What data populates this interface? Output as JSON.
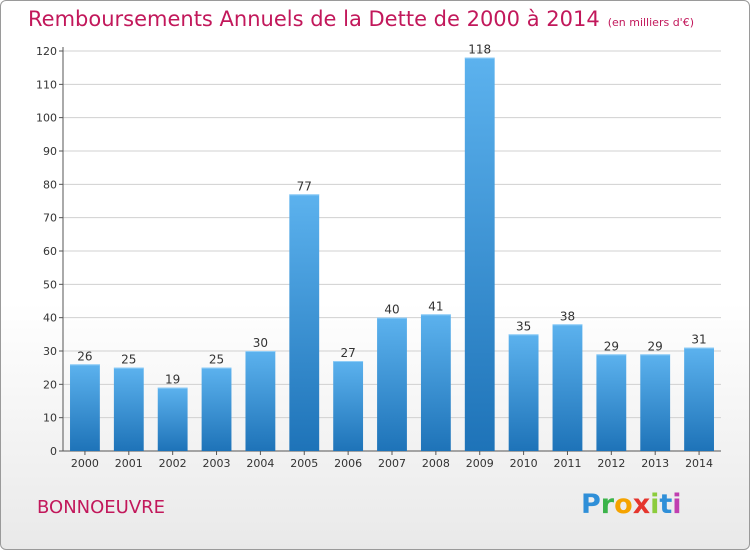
{
  "header": {
    "title": "Remboursements Annuels de la Dette de 2000 à 2014",
    "unit": "(en milliers d'€)"
  },
  "footer": {
    "commune": "BONNOEUVRE",
    "brand_letters": [
      "P",
      "r",
      "o",
      "x",
      "i",
      "t",
      "i"
    ],
    "brand_colors": [
      "#2f8fd8",
      "#3bb34a",
      "#f5a300",
      "#e5352d",
      "#8ccc3c",
      "#2f8fd8",
      "#c03fb0"
    ]
  },
  "colors": {
    "bar_top": "#5cb2ee",
    "bar_bottom": "#1e73b8",
    "grid": "#d0d0d0",
    "title": "#c2185b"
  },
  "chart_data": {
    "type": "bar",
    "title": "Remboursements Annuels de la Dette de 2000 à 2014",
    "categories": [
      "2000",
      "2001",
      "2002",
      "2003",
      "2004",
      "2005",
      "2006",
      "2007",
      "2008",
      "2009",
      "2010",
      "2011",
      "2012",
      "2013",
      "2014"
    ],
    "values": [
      26,
      25,
      19,
      25,
      30,
      77,
      27,
      40,
      41,
      118,
      35,
      38,
      29,
      29,
      31
    ],
    "ylim": [
      0,
      120
    ],
    "yticks": [
      0,
      10,
      20,
      30,
      40,
      50,
      60,
      70,
      80,
      90,
      100,
      110,
      120
    ],
    "grid": true,
    "xlabel": "",
    "ylabel": ""
  }
}
